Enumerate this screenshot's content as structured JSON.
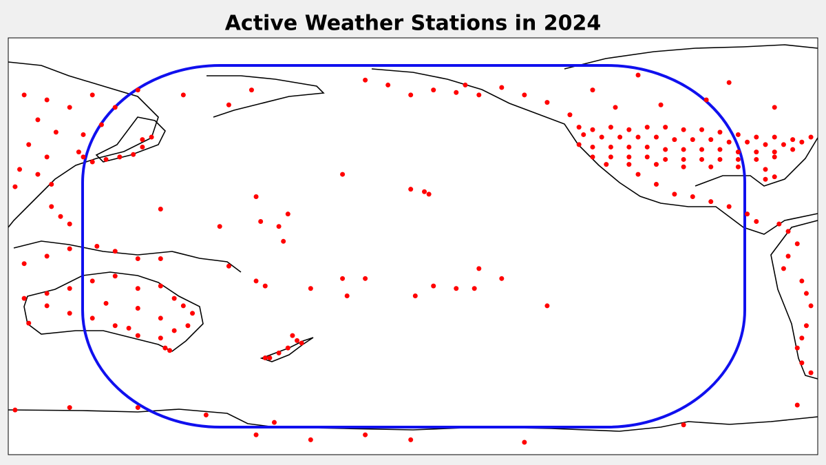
{
  "chart_data": {
    "type": "scatter",
    "title": "Active Weather Stations in 2024",
    "color": "#ff0000",
    "xlim": [
      111.5,
      289.5
    ],
    "ylim": [
      -85,
      83
    ],
    "x": [
      237,
      240,
      244,
      248,
      252,
      256,
      260,
      264,
      268,
      272,
      276,
      280,
      284,
      288,
      238,
      242,
      246,
      250,
      254,
      258,
      262,
      266,
      270,
      274,
      278,
      282,
      286,
      237,
      240,
      244,
      248,
      252,
      256,
      260,
      264,
      268,
      272,
      276,
      280,
      284,
      240,
      244,
      248,
      252,
      256,
      260,
      264,
      268,
      272,
      276,
      280,
      243,
      248,
      254,
      260,
      266,
      272,
      278,
      280,
      278,
      250,
      254,
      258,
      262,
      266,
      270,
      274,
      276,
      205,
      210,
      215,
      212,
      220,
      225,
      230,
      235,
      200,
      195,
      190,
      245,
      255,
      265,
      280,
      240,
      250,
      270,
      115,
      120,
      125,
      130,
      135,
      140,
      150,
      160,
      165,
      118,
      122,
      128,
      132,
      116,
      120,
      114,
      118,
      113,
      121,
      130,
      133,
      136,
      139,
      141,
      141,
      143,
      127,
      128,
      121,
      123,
      125,
      115,
      120,
      125,
      131,
      135,
      140,
      145,
      116,
      115,
      120,
      125,
      130,
      135,
      140,
      145,
      148,
      150,
      152,
      151,
      148,
      145,
      140,
      138,
      135,
      130,
      125,
      120,
      145,
      140,
      133,
      146,
      147,
      174,
      175,
      176,
      173,
      171,
      169,
      168,
      158,
      167,
      171,
      160,
      166,
      168,
      178,
      185,
      186,
      190,
      201,
      205,
      210,
      214,
      220,
      230,
      172,
      173,
      145,
      166,
      204,
      203,
      200,
      185,
      215,
      281,
      283,
      285,
      283,
      282,
      286,
      287,
      288,
      287,
      286,
      285,
      286,
      288,
      113,
      140,
      166,
      170,
      178,
      190,
      200,
      225,
      260,
      285,
      125,
      155
    ],
    "values": [
      47,
      46,
      47,
      46,
      47,
      47,
      46,
      46,
      45,
      44,
      43,
      43,
      42,
      43,
      44,
      43,
      43,
      43,
      43,
      42,
      42,
      42,
      41,
      41,
      40,
      40,
      41,
      40,
      39,
      39,
      39,
      39,
      38,
      38,
      38,
      38,
      37,
      37,
      37,
      38,
      35,
      35,
      35,
      35,
      34,
      34,
      34,
      34,
      34,
      34,
      35,
      32,
      32,
      32,
      31,
      31,
      31,
      30,
      27,
      26,
      28,
      24,
      20,
      19,
      17,
      15,
      12,
      9,
      62,
      61,
      60,
      64,
      63,
      60,
      57,
      52,
      60,
      64,
      66,
      55,
      56,
      58,
      55,
      62,
      68,
      65,
      60,
      58,
      55,
      60,
      55,
      62,
      60,
      56,
      62,
      50,
      45,
      44,
      48,
      40,
      35,
      30,
      28,
      23,
      24,
      33,
      34,
      35,
      36,
      39,
      42,
      43,
      37,
      35,
      15,
      11,
      8,
      -8,
      -5,
      -2,
      -1,
      -3,
      -6,
      -6,
      -32,
      -22,
      -20,
      -18,
      -15,
      -13,
      -18,
      -17,
      -22,
      -25,
      -28,
      -33,
      -35,
      -38,
      -37,
      -34,
      -33,
      -30,
      -28,
      -25,
      -30,
      -26,
      -24,
      -42,
      -43,
      -37,
      -39,
      -40,
      -42,
      -44,
      -46,
      -46,
      7,
      9,
      7,
      -9,
      -15,
      -17,
      -18,
      -14,
      -21,
      -14,
      -21,
      -17,
      -18,
      -18,
      -14,
      -25,
      1,
      12,
      14,
      19,
      20,
      21,
      22,
      28,
      -10,
      8,
      5,
      0,
      -5,
      -10,
      -15,
      -20,
      -25,
      -33,
      -38,
      -42,
      -48,
      -52,
      -67,
      -66,
      -77,
      -72,
      -79,
      -77,
      -79,
      -80,
      -73,
      -65,
      -66,
      -69
    ]
  }
}
